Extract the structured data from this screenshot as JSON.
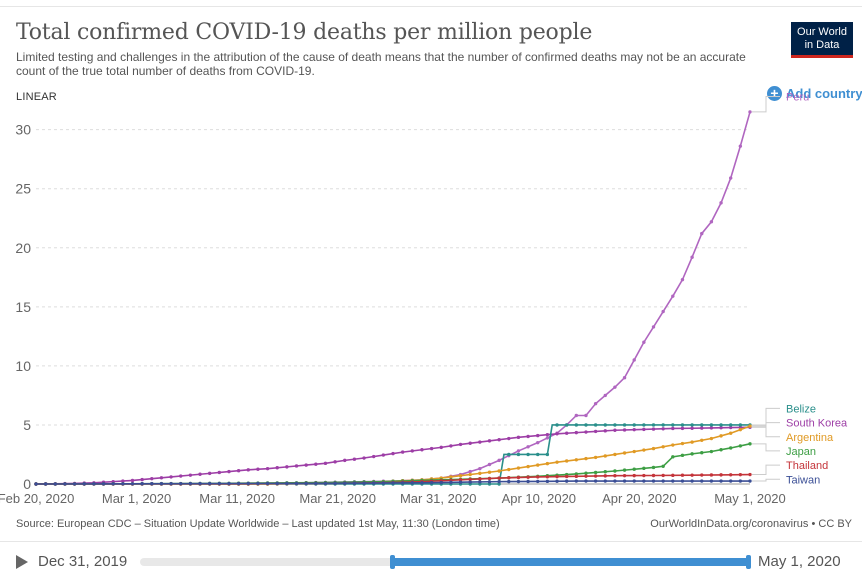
{
  "header": {
    "title": "Total confirmed COVID-19 deaths per million people",
    "subtitle": "Limited testing and challenges in the attribution of the cause of death means that the number of confirmed deaths may not be an accurate count of the true total number of deaths from COVID-19.",
    "logo_line1": "Our World",
    "logo_line2": "in Data",
    "scale_mode": "LINEAR",
    "add_country_label": "Add country"
  },
  "footer": {
    "source": "Source: European CDC – Situation Update Worldwide – Last updated 1st May, 11:30 (London time)",
    "credit": "OurWorldInData.org/coronavirus • CC BY"
  },
  "timeline": {
    "start_label": "Dec 31, 2019",
    "end_label": "May 1, 2020"
  },
  "colors": {
    "Peru": "#b066c0",
    "Belize": "#2a8f8b",
    "South Korea": "#9d3ea6",
    "Argentina": "#e09a25",
    "Japan": "#3d9e44",
    "Thailand": "#c4343a",
    "Taiwan": "#3b4f96"
  },
  "chart_data": {
    "type": "line",
    "title": "Total confirmed COVID-19 deaths per million people",
    "xlabel": "",
    "ylabel": "",
    "ylim": [
      0,
      32
    ],
    "yticks": [
      0,
      5,
      10,
      15,
      20,
      25,
      30
    ],
    "x_start": "Feb 20, 2020",
    "x_end": "May 1, 2020",
    "num_days": 71,
    "xticks": [
      {
        "day": 0,
        "label": "Feb 20, 2020"
      },
      {
        "day": 10,
        "label": "Mar 1, 2020"
      },
      {
        "day": 20,
        "label": "Mar 11, 2020"
      },
      {
        "day": 30,
        "label": "Mar 21, 2020"
      },
      {
        "day": 40,
        "label": "Mar 31, 2020"
      },
      {
        "day": 50,
        "label": "Apr 10, 2020"
      },
      {
        "day": 60,
        "label": "Apr 20, 2020"
      },
      {
        "day": 71,
        "label": "May 1, 2020"
      }
    ],
    "grid": true,
    "series": [
      {
        "name": "Peru",
        "label_value": 31.5,
        "points": [
          [
            0,
            0
          ],
          [
            22,
            0
          ],
          [
            25,
            0.05
          ],
          [
            28,
            0.1
          ],
          [
            31,
            0.15
          ],
          [
            34,
            0.2
          ],
          [
            37,
            0.25
          ],
          [
            40,
            0.35
          ],
          [
            42,
            0.5
          ],
          [
            44,
            0.8
          ],
          [
            46,
            1.3
          ],
          [
            48,
            2.0
          ],
          [
            50,
            2.8
          ],
          [
            52,
            3.5
          ],
          [
            54,
            4.3
          ],
          [
            55,
            5.0
          ],
          [
            56,
            5.8
          ],
          [
            57,
            5.8
          ],
          [
            58,
            6.8
          ],
          [
            59,
            7.5
          ],
          [
            60,
            8.2
          ],
          [
            61,
            9.0
          ],
          [
            62,
            10.5
          ],
          [
            63,
            12.0
          ],
          [
            64,
            13.3
          ],
          [
            65,
            14.6
          ],
          [
            66,
            15.9
          ],
          [
            67,
            17.3
          ],
          [
            68,
            19.2
          ],
          [
            69,
            21.2
          ],
          [
            70,
            22.2
          ],
          [
            71,
            23.8
          ],
          [
            72,
            25.9
          ],
          [
            73,
            28.6
          ],
          [
            74,
            31.5
          ]
        ]
      },
      {
        "name": "South Korea",
        "label_value": 4.8,
        "points": [
          [
            0,
            0
          ],
          [
            2,
            0.02
          ],
          [
            4,
            0.05
          ],
          [
            6,
            0.1
          ],
          [
            8,
            0.2
          ],
          [
            10,
            0.3
          ],
          [
            12,
            0.45
          ],
          [
            14,
            0.6
          ],
          [
            16,
            0.75
          ],
          [
            18,
            0.9
          ],
          [
            20,
            1.05
          ],
          [
            22,
            1.2
          ],
          [
            24,
            1.3
          ],
          [
            26,
            1.45
          ],
          [
            28,
            1.6
          ],
          [
            30,
            1.75
          ],
          [
            32,
            2.0
          ],
          [
            34,
            2.2
          ],
          [
            36,
            2.45
          ],
          [
            38,
            2.7
          ],
          [
            40,
            2.9
          ],
          [
            42,
            3.1
          ],
          [
            44,
            3.35
          ],
          [
            46,
            3.55
          ],
          [
            48,
            3.75
          ],
          [
            50,
            3.95
          ],
          [
            52,
            4.1
          ],
          [
            54,
            4.25
          ],
          [
            56,
            4.35
          ],
          [
            58,
            4.45
          ],
          [
            60,
            4.55
          ],
          [
            62,
            4.6
          ],
          [
            64,
            4.65
          ],
          [
            66,
            4.7
          ],
          [
            68,
            4.72
          ],
          [
            70,
            4.75
          ],
          [
            72,
            4.78
          ],
          [
            74,
            4.8
          ]
        ]
      },
      {
        "name": "Belize",
        "label_value": 5.0,
        "points": [
          [
            0,
            0
          ],
          [
            48,
            0
          ],
          [
            48.5,
            2.5
          ],
          [
            53,
            2.5
          ],
          [
            53.5,
            5.0
          ],
          [
            74,
            5.0
          ]
        ]
      },
      {
        "name": "Argentina",
        "label_value": 4.9,
        "points": [
          [
            0,
            0
          ],
          [
            24,
            0
          ],
          [
            28,
            0.05
          ],
          [
            32,
            0.1
          ],
          [
            36,
            0.2
          ],
          [
            40,
            0.35
          ],
          [
            42,
            0.5
          ],
          [
            44,
            0.7
          ],
          [
            46,
            0.9
          ],
          [
            48,
            1.1
          ],
          [
            50,
            1.35
          ],
          [
            52,
            1.6
          ],
          [
            54,
            1.85
          ],
          [
            56,
            2.05
          ],
          [
            58,
            2.25
          ],
          [
            60,
            2.5
          ],
          [
            62,
            2.75
          ],
          [
            64,
            3.0
          ],
          [
            66,
            3.3
          ],
          [
            68,
            3.55
          ],
          [
            70,
            3.85
          ],
          [
            72,
            4.3
          ],
          [
            74,
            4.9
          ]
        ]
      },
      {
        "name": "Japan",
        "label_value": 3.4,
        "points": [
          [
            0,
            0
          ],
          [
            10,
            0.02
          ],
          [
            20,
            0.06
          ],
          [
            30,
            0.12
          ],
          [
            36,
            0.2
          ],
          [
            40,
            0.3
          ],
          [
            44,
            0.4
          ],
          [
            48,
            0.5
          ],
          [
            52,
            0.65
          ],
          [
            56,
            0.85
          ],
          [
            60,
            1.1
          ],
          [
            62,
            1.25
          ],
          [
            64,
            1.4
          ],
          [
            65,
            1.5
          ],
          [
            66,
            2.3
          ],
          [
            68,
            2.55
          ],
          [
            70,
            2.75
          ],
          [
            72,
            3.05
          ],
          [
            74,
            3.4
          ]
        ]
      },
      {
        "name": "Thailand",
        "label_value": 0.8,
        "points": [
          [
            0,
            0
          ],
          [
            10,
            0.01
          ],
          [
            20,
            0.02
          ],
          [
            30,
            0.05
          ],
          [
            36,
            0.1
          ],
          [
            40,
            0.2
          ],
          [
            44,
            0.35
          ],
          [
            48,
            0.5
          ],
          [
            52,
            0.6
          ],
          [
            56,
            0.65
          ],
          [
            60,
            0.7
          ],
          [
            64,
            0.72
          ],
          [
            68,
            0.75
          ],
          [
            72,
            0.78
          ],
          [
            74,
            0.8
          ]
        ]
      },
      {
        "name": "Taiwan",
        "label_value": 0.25,
        "points": [
          [
            0,
            0
          ],
          [
            20,
            0.04
          ],
          [
            30,
            0.05
          ],
          [
            40,
            0.1
          ],
          [
            44,
            0.15
          ],
          [
            48,
            0.2
          ],
          [
            52,
            0.22
          ],
          [
            56,
            0.25
          ],
          [
            60,
            0.25
          ],
          [
            64,
            0.25
          ],
          [
            68,
            0.25
          ],
          [
            72,
            0.25
          ],
          [
            74,
            0.25
          ]
        ]
      }
    ],
    "labels": [
      {
        "name": "Peru",
        "text": "Peru",
        "value": 32.8
      },
      {
        "name": "Belize",
        "text": "Belize",
        "value": 6.4
      },
      {
        "name": "South Korea",
        "text": "South Korea",
        "value": 5.2
      },
      {
        "name": "Argentina",
        "text": "Argentina",
        "value": 4.0
      },
      {
        "name": "Japan",
        "text": "Japan",
        "value": 2.8
      },
      {
        "name": "Thailand",
        "text": "Thailand",
        "value": 1.6
      },
      {
        "name": "Taiwan",
        "text": "Taiwan",
        "value": 0.4
      }
    ]
  }
}
